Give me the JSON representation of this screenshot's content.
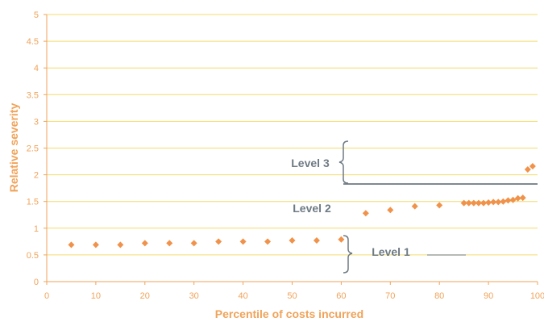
{
  "chart_data": {
    "type": "scatter",
    "xlabel": "Percentile of costs incurred",
    "ylabel": "Relative severity",
    "xlim": [
      0,
      100
    ],
    "ylim": [
      0,
      5
    ],
    "x_ticks": [
      0,
      10,
      20,
      30,
      40,
      50,
      60,
      70,
      80,
      90,
      100
    ],
    "y_ticks": [
      0,
      0.5,
      1,
      1.5,
      2,
      2.5,
      3,
      3.5,
      4,
      4.5,
      5
    ],
    "grid": "horizontal",
    "legend": "none",
    "series": [
      {
        "x": [
          5,
          10,
          15,
          20,
          25,
          30,
          35,
          40,
          45,
          50,
          55,
          60,
          65,
          70,
          75,
          80,
          85,
          86,
          87,
          88,
          89,
          90,
          91,
          92,
          93,
          94,
          95,
          96,
          97,
          98,
          99
        ],
        "y": [
          0.69,
          0.69,
          0.69,
          0.72,
          0.72,
          0.72,
          0.75,
          0.75,
          0.75,
          0.77,
          0.77,
          0.79,
          1.28,
          1.34,
          1.41,
          1.43,
          1.47,
          1.47,
          1.47,
          1.47,
          1.47,
          1.48,
          1.49,
          1.49,
          1.5,
          1.52,
          1.53,
          1.56,
          1.57,
          2.1,
          2.16
        ]
      }
    ],
    "annotations": [
      {
        "text": "Level 3"
      },
      {
        "text": "Level 2"
      },
      {
        "text": "Level 1"
      }
    ],
    "colors": {
      "marker": "#F0924A",
      "grid": "#F2DC6C",
      "axis": "#F0A35A",
      "annotation": "#6E7A83"
    }
  }
}
